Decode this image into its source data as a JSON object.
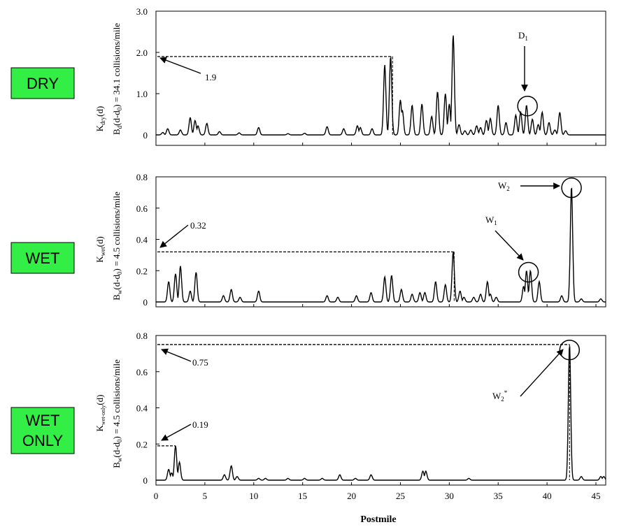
{
  "colors": {
    "badge_fill": "#33ee44",
    "badge_border": "#000000",
    "line": "#000000",
    "background": "#ffffff"
  },
  "xlabel": "Postmile",
  "panels": [
    {
      "badge_lines": [
        "DRY"
      ],
      "ylabel_main": "K",
      "ylabel_main_sub": "dry",
      "ylabel_main_rest": "(d)",
      "ylabel_sec_pre": "B",
      "ylabel_sec_sub": "d",
      "ylabel_sec_mid": "(d-d",
      "ylabel_sec_sub2": "0",
      "ylabel_sec_rest": ") = 34.1 collisions/mile",
      "threshold_label": "1.9",
      "circle_label": "D",
      "circle_label_sub": "1",
      "circle_label_sup": ""
    },
    {
      "badge_lines": [
        "WET"
      ],
      "ylabel_main": "K",
      "ylabel_main_sub": "wet",
      "ylabel_main_rest": "(d)",
      "ylabel_sec_pre": "B",
      "ylabel_sec_sub": "w",
      "ylabel_sec_mid": "(d-d",
      "ylabel_sec_sub2": "0",
      "ylabel_sec_rest": ") = 4.5 collisions/mile",
      "threshold_label": "0.32",
      "circle_labels": [
        {
          "label": "W",
          "sub": "1"
        },
        {
          "label": "W",
          "sub": "2"
        }
      ]
    },
    {
      "badge_lines": [
        "WET",
        "ONLY"
      ],
      "ylabel_main": "K",
      "ylabel_main_sub": "wet-only",
      "ylabel_main_rest": "(d)",
      "ylabel_sec_pre": "B",
      "ylabel_sec_sub": "w",
      "ylabel_sec_mid": "(d-d",
      "ylabel_sec_sub2": "0",
      "ylabel_sec_rest": ") = 4.5 collisions/mile",
      "threshold_label": "0.75",
      "threshold_label2": "0.19",
      "circle_label": "W",
      "circle_label_sub": "2",
      "circle_label_sup": "*"
    }
  ],
  "chart_data": [
    {
      "type": "line",
      "title": "DRY",
      "xlabel": "",
      "ylabel": "K_dry(d), B_d(d-d_0) = 34.1 collisions/mile",
      "xlim": [
        0,
        46
      ],
      "ylim": [
        -0.3,
        3.0
      ],
      "yticks": [
        0,
        1.0,
        2.0,
        3.0
      ],
      "ytick_labels": [
        "0",
        "1.0",
        "2.0",
        "3.0"
      ],
      "threshold": {
        "value": 1.9,
        "x_end": 24.2
      },
      "circle": {
        "x": 38.0,
        "y": 0.7,
        "label": "D1"
      },
      "peaks": [
        [
          0.7,
          0.06
        ],
        [
          1.2,
          0.15
        ],
        [
          2.5,
          0.12
        ],
        [
          3.5,
          0.42
        ],
        [
          4.0,
          0.35
        ],
        [
          4.3,
          0.22
        ],
        [
          5.2,
          0.28
        ],
        [
          6.5,
          0.08
        ],
        [
          8.5,
          0.05
        ],
        [
          10.5,
          0.18
        ],
        [
          13.5,
          0.03
        ],
        [
          15.2,
          0.04
        ],
        [
          17.5,
          0.2
        ],
        [
          19.2,
          0.15
        ],
        [
          20.6,
          0.22
        ],
        [
          20.9,
          0.18
        ],
        [
          22.1,
          0.15
        ],
        [
          23.4,
          1.7
        ],
        [
          24.0,
          1.9
        ],
        [
          25.0,
          0.85
        ],
        [
          25.2,
          0.6
        ],
        [
          26.2,
          0.72
        ],
        [
          27.2,
          0.75
        ],
        [
          28.2,
          0.45
        ],
        [
          28.8,
          1.05
        ],
        [
          29.6,
          1.0
        ],
        [
          30.0,
          0.75
        ],
        [
          30.4,
          2.42
        ],
        [
          31.0,
          0.25
        ],
        [
          31.6,
          0.1
        ],
        [
          32.2,
          0.12
        ],
        [
          32.8,
          0.22
        ],
        [
          33.2,
          0.18
        ],
        [
          33.8,
          0.35
        ],
        [
          34.2,
          0.4
        ],
        [
          35.0,
          0.72
        ],
        [
          35.8,
          0.3
        ],
        [
          36.8,
          0.48
        ],
        [
          37.3,
          0.55
        ],
        [
          37.9,
          0.72
        ],
        [
          38.5,
          0.38
        ],
        [
          39.1,
          0.25
        ],
        [
          39.5,
          0.55
        ],
        [
          40.2,
          0.3
        ],
        [
          40.8,
          0.12
        ],
        [
          41.3,
          0.55
        ],
        [
          41.9,
          0.1
        ]
      ]
    },
    {
      "type": "line",
      "title": "WET",
      "xlabel": "",
      "ylabel": "K_wet(d), B_w(d-d_0) = 4.5 collisions/mile",
      "xlim": [
        0,
        46
      ],
      "ylim": [
        -0.03,
        0.8
      ],
      "yticks": [
        0,
        0.2,
        0.4,
        0.6,
        0.8
      ],
      "ytick_labels": [
        "0",
        "0.2",
        "0.4",
        "0.6",
        "0.8"
      ],
      "threshold": {
        "value": 0.32,
        "x_end": 30.5
      },
      "circles": [
        {
          "x": 38.1,
          "y": 0.19,
          "label": "W1"
        },
        {
          "x": 42.5,
          "y": 0.73,
          "label": "W2"
        }
      ],
      "peaks": [
        [
          1.3,
          0.13
        ],
        [
          2.0,
          0.18
        ],
        [
          2.5,
          0.23
        ],
        [
          3.5,
          0.07
        ],
        [
          4.1,
          0.19
        ],
        [
          6.9,
          0.04
        ],
        [
          7.7,
          0.08
        ],
        [
          8.6,
          0.03
        ],
        [
          10.5,
          0.07
        ],
        [
          17.5,
          0.04
        ],
        [
          18.6,
          0.03
        ],
        [
          20.5,
          0.04
        ],
        [
          22.0,
          0.06
        ],
        [
          23.4,
          0.16
        ],
        [
          24.1,
          0.17
        ],
        [
          25.1,
          0.08
        ],
        [
          26.2,
          0.05
        ],
        [
          27.0,
          0.06
        ],
        [
          27.5,
          0.06
        ],
        [
          28.6,
          0.13
        ],
        [
          29.6,
          0.11
        ],
        [
          30.4,
          0.32
        ],
        [
          31.1,
          0.07
        ],
        [
          31.5,
          0.03
        ],
        [
          32.5,
          0.03
        ],
        [
          33.2,
          0.05
        ],
        [
          33.9,
          0.13
        ],
        [
          34.2,
          0.05
        ],
        [
          34.8,
          0.03
        ],
        [
          37.6,
          0.1
        ],
        [
          37.9,
          0.2
        ],
        [
          38.3,
          0.2
        ],
        [
          39.2,
          0.13
        ],
        [
          41.5,
          0.04
        ],
        [
          42.5,
          0.74
        ],
        [
          43.5,
          0.02
        ],
        [
          45.5,
          0.02
        ]
      ]
    },
    {
      "type": "line",
      "title": "WET ONLY",
      "xlabel": "Postmile",
      "ylabel": "K_wet-only(d), B_w(d-d_0) = 4.5 collisions/mile",
      "xlim": [
        0,
        46
      ],
      "ylim": [
        -0.03,
        0.8
      ],
      "yticks": [
        0,
        0.2,
        0.4,
        0.6,
        0.8
      ],
      "ytick_labels": [
        "0",
        "0.2",
        "0.4",
        "0.6",
        "0.8"
      ],
      "xticks": [
        0,
        5,
        10,
        15,
        20,
        25,
        30,
        35,
        40,
        45
      ],
      "xtick_labels": [
        "0",
        "5",
        "10",
        "15",
        "20",
        "25",
        "30",
        "35",
        "40",
        "45"
      ],
      "threshold": {
        "value": 0.75,
        "x_end": 42.3
      },
      "threshold2": {
        "value": 0.19,
        "x_end": 2.0
      },
      "circle": {
        "x": 42.3,
        "y": 0.72,
        "label": "W2*"
      },
      "peaks": [
        [
          1.3,
          0.06
        ],
        [
          1.6,
          0.04
        ],
        [
          2.0,
          0.19
        ],
        [
          2.4,
          0.1
        ],
        [
          7.0,
          0.03
        ],
        [
          7.7,
          0.08
        ],
        [
          8.3,
          0.02
        ],
        [
          10.5,
          0.01
        ],
        [
          11.2,
          0.01
        ],
        [
          13.5,
          0.01
        ],
        [
          15.2,
          0.01
        ],
        [
          17.0,
          0.01
        ],
        [
          18.8,
          0.03
        ],
        [
          20.4,
          0.01
        ],
        [
          22.0,
          0.03
        ],
        [
          27.3,
          0.05
        ],
        [
          27.6,
          0.05
        ],
        [
          32.0,
          0.01
        ],
        [
          42.3,
          0.75
        ],
        [
          43.5,
          0.02
        ],
        [
          45.5,
          0.02
        ],
        [
          45.8,
          0.02
        ]
      ]
    }
  ]
}
